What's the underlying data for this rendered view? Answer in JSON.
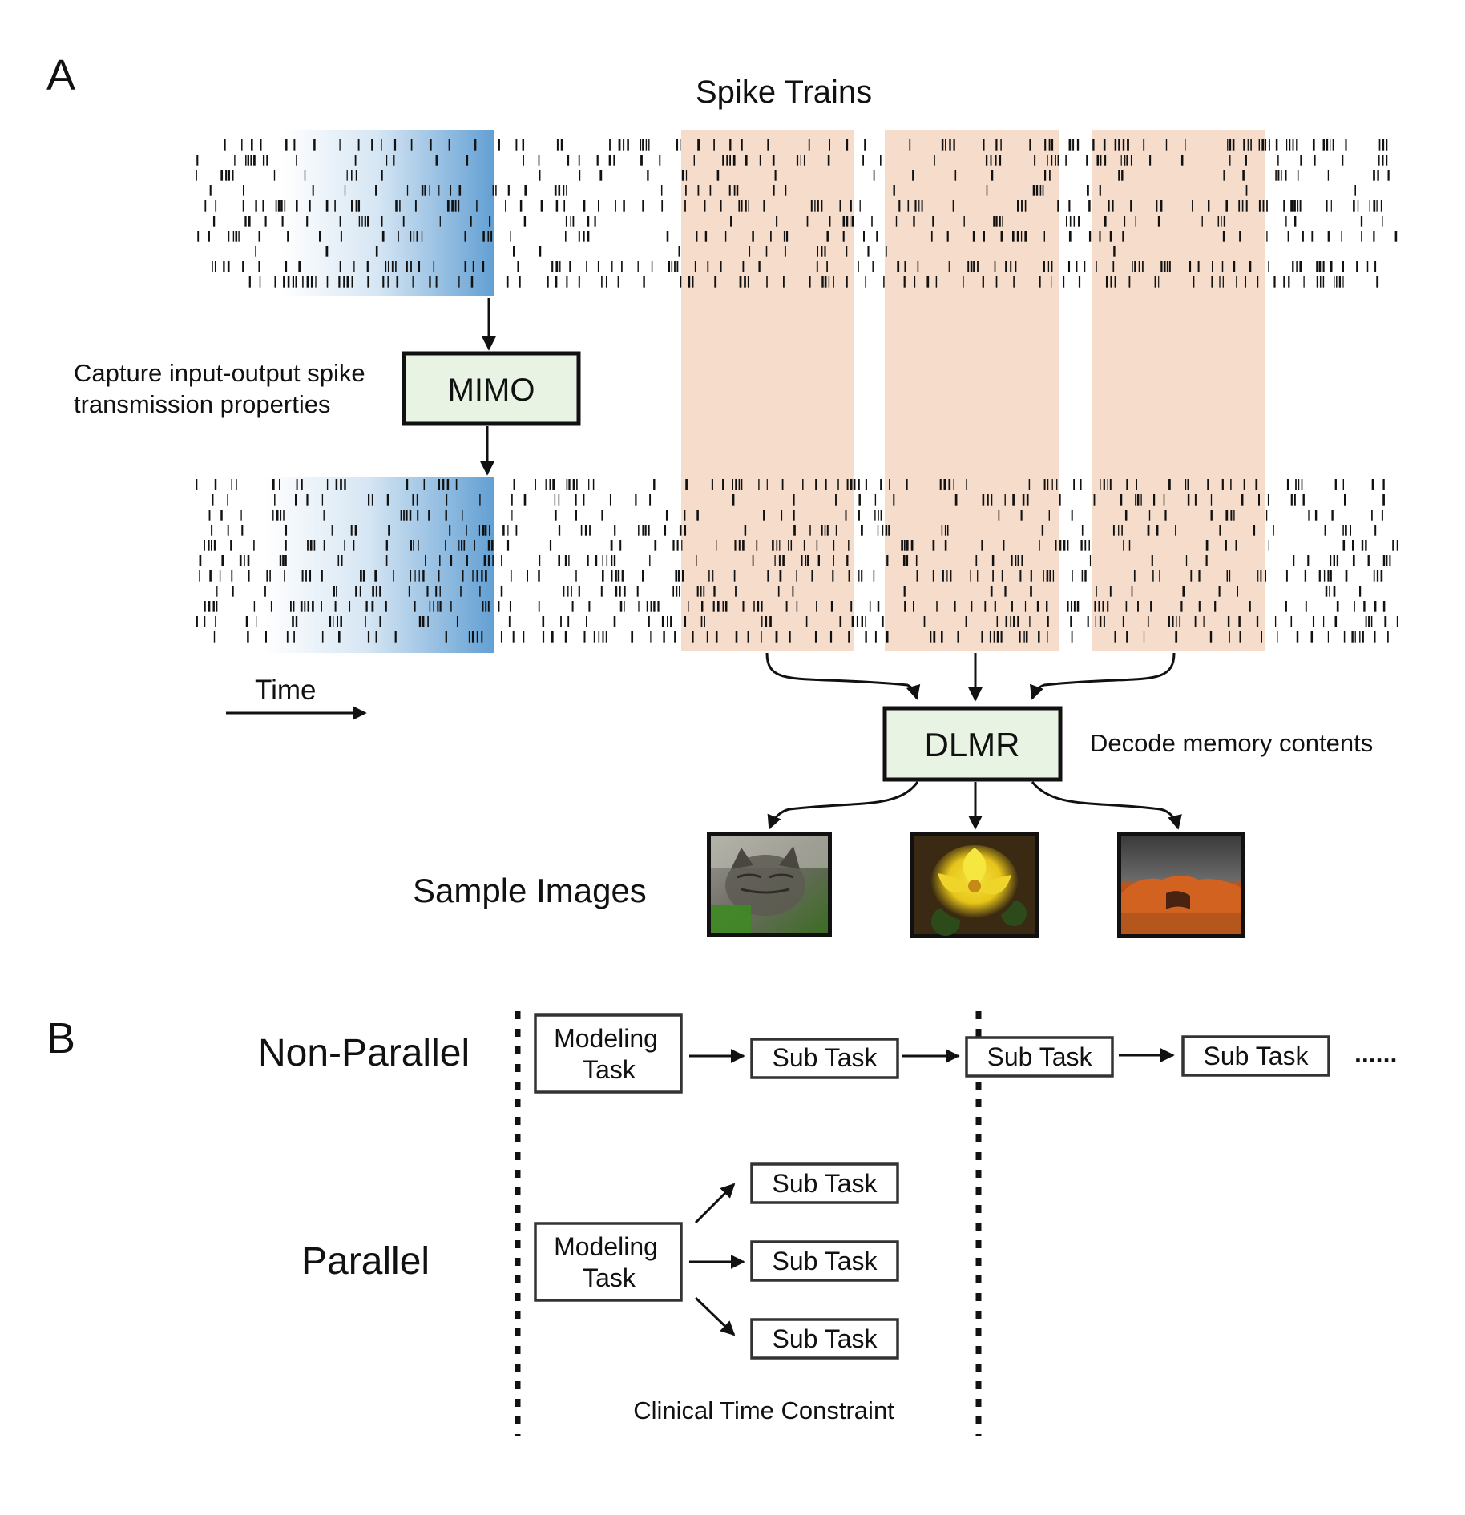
{
  "panel_a": {
    "label": "A",
    "title": "Spike Trains",
    "mimo_caption_line1": "Capture input-output spike",
    "mimo_caption_line2": "transmission properties",
    "mimo_label": "MIMO",
    "time_label": "Time",
    "dlmr_label": "DLMR",
    "dlmr_caption": "Decode memory contents",
    "sample_images_label": "Sample Images",
    "sample_images": [
      {
        "subject": "cat"
      },
      {
        "subject": "yellow flower"
      },
      {
        "subject": "red rock arch"
      }
    ],
    "colors": {
      "input_window": "#5b9bd1",
      "decode_window": "#f6dccb",
      "module_fill": "#e8f3e4"
    }
  },
  "panel_b": {
    "label": "B",
    "non_parallel_label": "Non-Parallel",
    "parallel_label": "Parallel",
    "modeling_task_line1": "Modeling",
    "modeling_task_line2": "Task",
    "sub_task_label": "Sub Task",
    "ellipsis": "......",
    "constraint_label": "Clinical Time Constraint"
  }
}
